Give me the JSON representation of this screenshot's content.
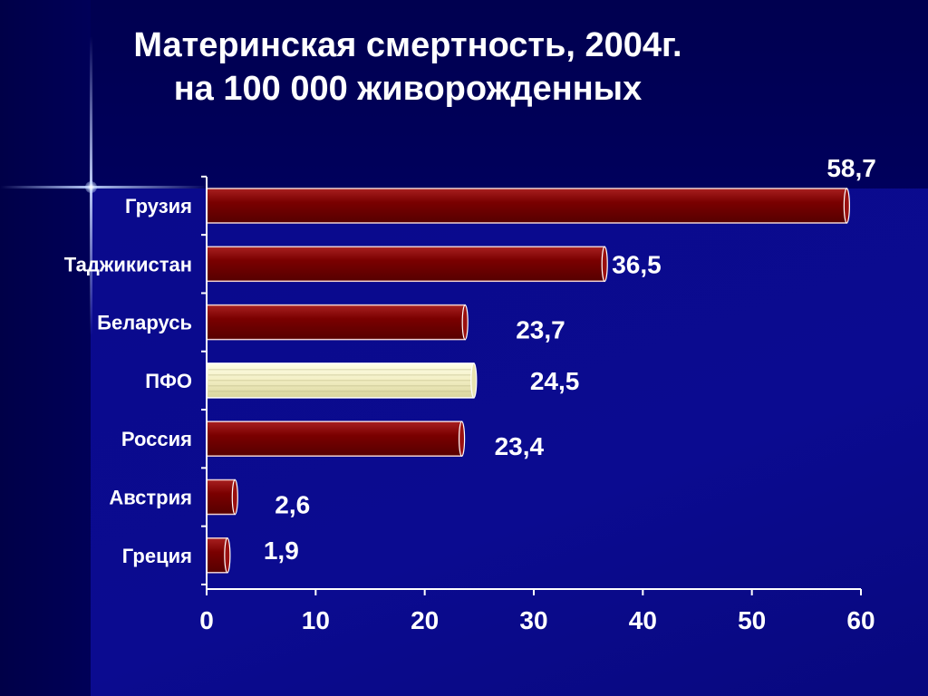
{
  "title_line1": "Материнская смертность, 2004г.",
  "title_line2": "на 100 000 живорожденных",
  "colors": {
    "bar": "#7a0000",
    "bar_highlight": "#f4f0c4",
    "axis": "#ffffff",
    "text": "#ffffff"
  },
  "chart_data": {
    "type": "bar",
    "orientation": "horizontal",
    "categories": [
      "Грузия",
      "Таджикистан",
      "Беларусь",
      "ПФО",
      "Россия",
      "Австрия",
      "Греция"
    ],
    "values": [
      58.7,
      36.5,
      23.7,
      24.5,
      23.4,
      2.6,
      1.9
    ],
    "value_labels": [
      "58,7",
      "36,5",
      "23,7",
      "24,5",
      "23,4",
      "2,6",
      "1,9"
    ],
    "highlighted_category": "ПФО",
    "xlim": [
      0,
      60
    ],
    "xticks": [
      0,
      10,
      20,
      30,
      40,
      50,
      60
    ],
    "xtick_labels": [
      "0",
      "10",
      "20",
      "30",
      "40",
      "50",
      "60"
    ],
    "grid": false,
    "legend": "none"
  }
}
